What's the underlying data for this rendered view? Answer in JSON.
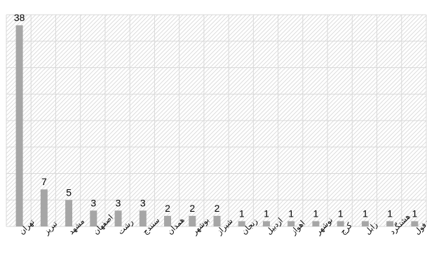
{
  "chart_data": {
    "type": "bar",
    "title": "",
    "xlabel": "",
    "ylabel": "",
    "ylim": [
      0,
      40
    ],
    "grid": true,
    "categories": [
      "تهران",
      "تبریز",
      "مشهد",
      "اصفهان",
      "رشت",
      "سنندج",
      "همدان",
      "بوشهر",
      "شیراز",
      "زنجان",
      "اردبیل",
      "اهواز",
      "نوشهر",
      "کرج",
      "زابل",
      "هشتگرد",
      "دزفول"
    ],
    "values": [
      38,
      7,
      5,
      3,
      3,
      3,
      2,
      2,
      2,
      1,
      1,
      1,
      1,
      1,
      1,
      1,
      1
    ],
    "colors": {
      "bar": "#a6a6a6",
      "grid": "#d9d9d9",
      "hatch": "#dcdcdc"
    }
  }
}
